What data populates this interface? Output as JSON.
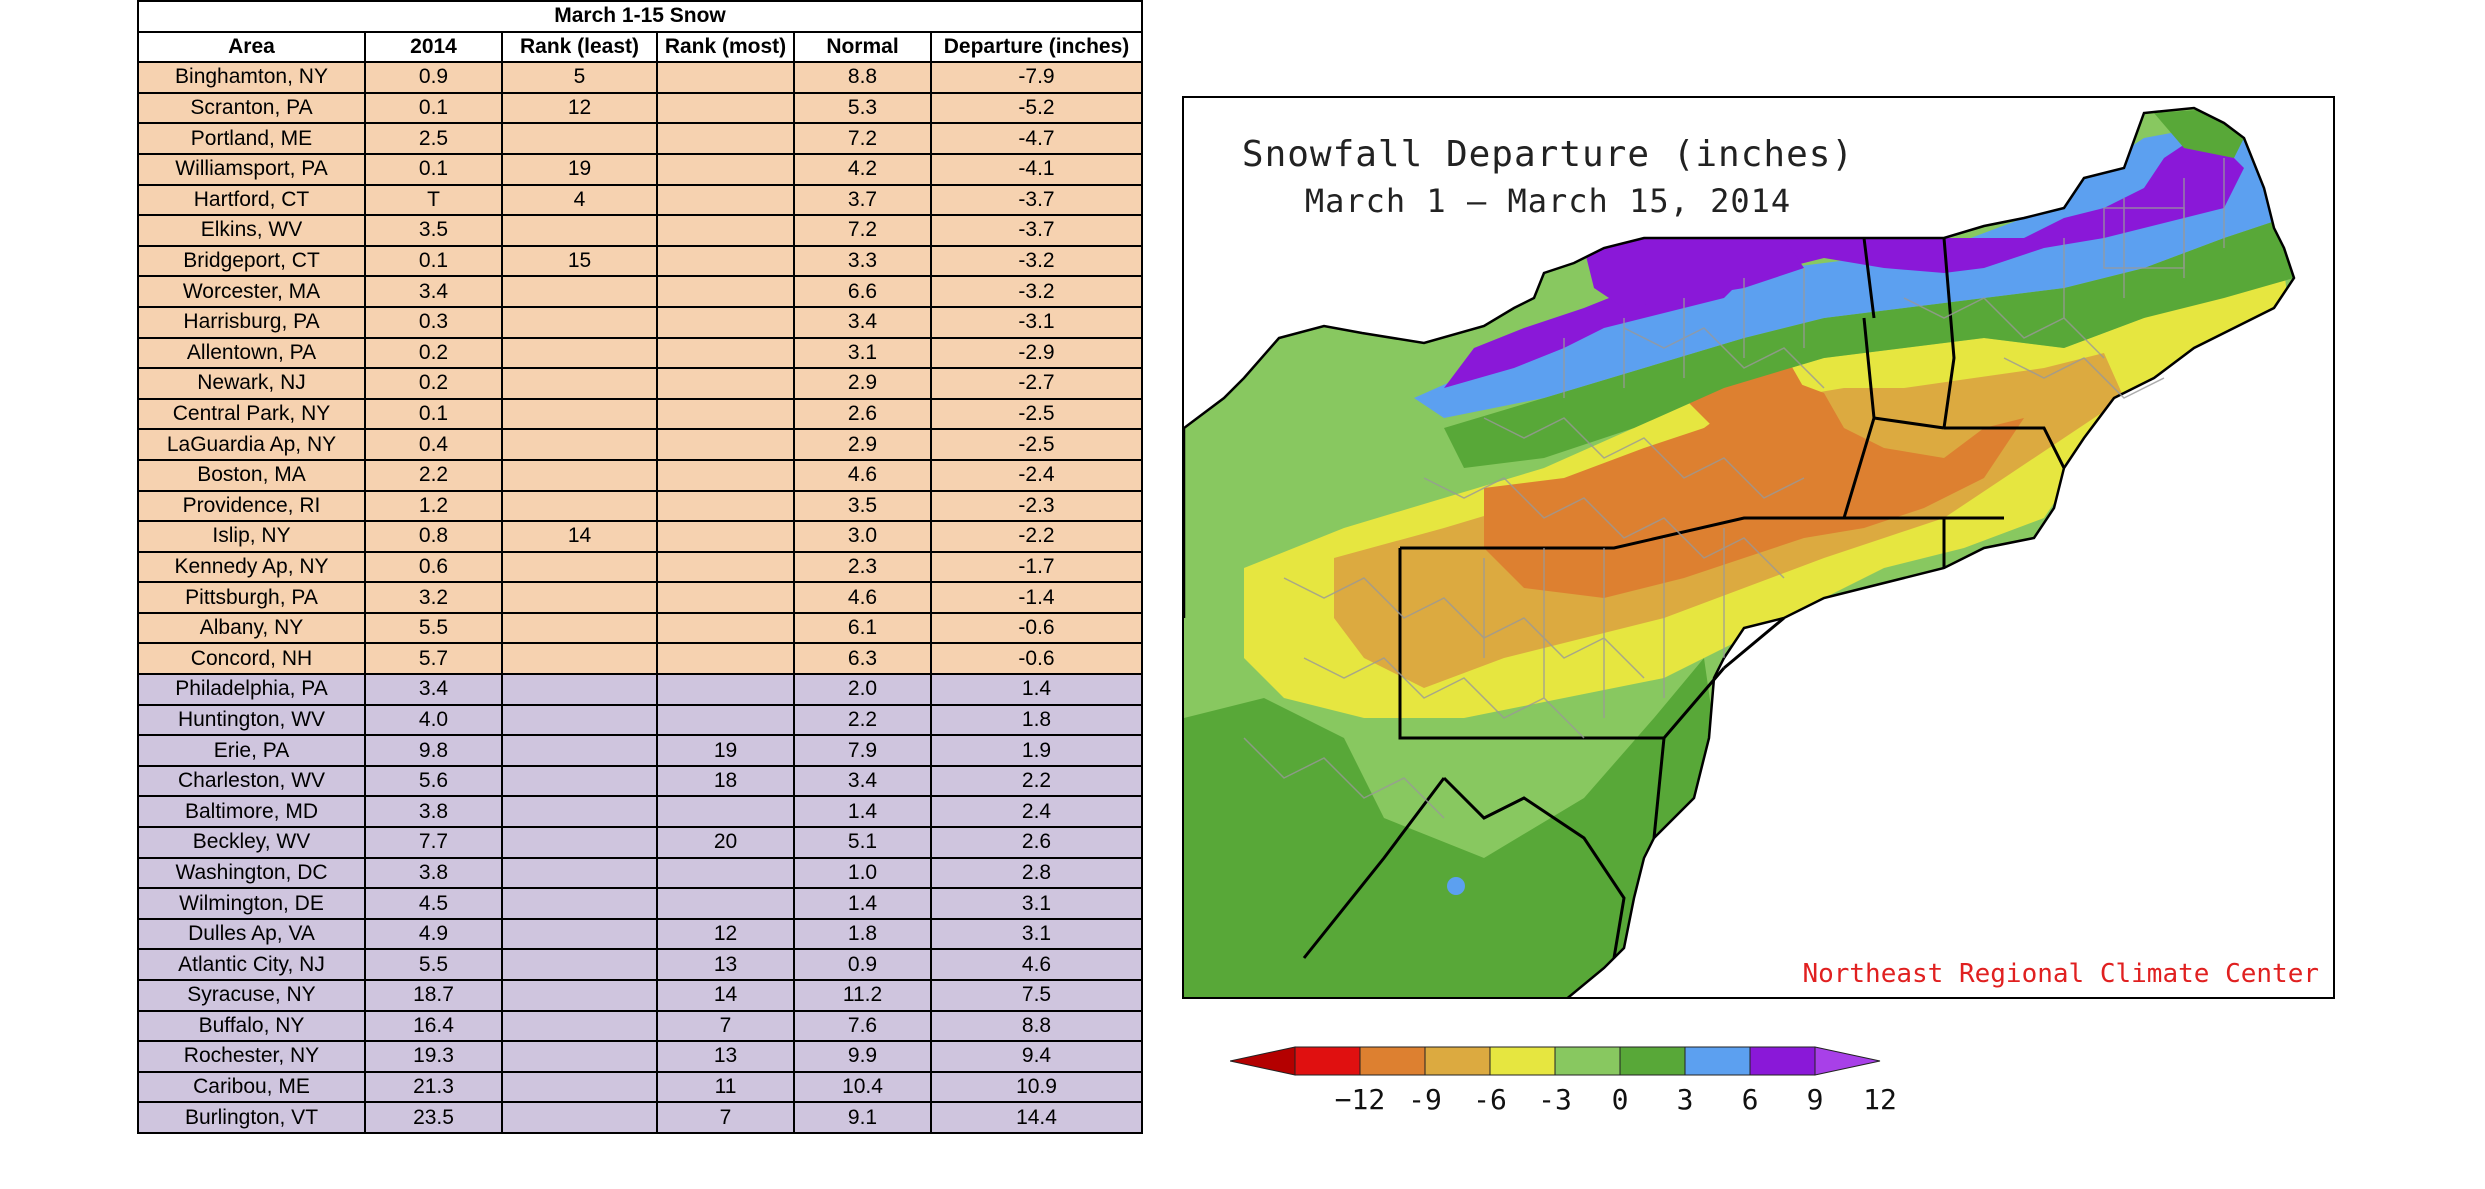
{
  "table": {
    "title": "March 1-15 Snow",
    "headers": [
      "Area",
      "2014",
      "Rank (least)",
      "Rank (most)",
      "Normal",
      "Departure (inches)"
    ],
    "rows": [
      {
        "area": "Binghamton, NY",
        "y2014": "0.9",
        "rank_least": "5",
        "rank_most": "",
        "normal": "8.8",
        "departure": "-7.9",
        "group": "deficit"
      },
      {
        "area": "Scranton, PA",
        "y2014": "0.1",
        "rank_least": "12",
        "rank_most": "",
        "normal": "5.3",
        "departure": "-5.2",
        "group": "deficit"
      },
      {
        "area": "Portland, ME",
        "y2014": "2.5",
        "rank_least": "",
        "rank_most": "",
        "normal": "7.2",
        "departure": "-4.7",
        "group": "deficit"
      },
      {
        "area": "Williamsport, PA",
        "y2014": "0.1",
        "rank_least": "19",
        "rank_most": "",
        "normal": "4.2",
        "departure": "-4.1",
        "group": "deficit"
      },
      {
        "area": "Hartford, CT",
        "y2014": "T",
        "rank_least": "4",
        "rank_most": "",
        "normal": "3.7",
        "departure": "-3.7",
        "group": "deficit"
      },
      {
        "area": "Elkins, WV",
        "y2014": "3.5",
        "rank_least": "",
        "rank_most": "",
        "normal": "7.2",
        "departure": "-3.7",
        "group": "deficit"
      },
      {
        "area": "Bridgeport, CT",
        "y2014": "0.1",
        "rank_least": "15",
        "rank_most": "",
        "normal": "3.3",
        "departure": "-3.2",
        "group": "deficit"
      },
      {
        "area": "Worcester, MA",
        "y2014": "3.4",
        "rank_least": "",
        "rank_most": "",
        "normal": "6.6",
        "departure": "-3.2",
        "group": "deficit"
      },
      {
        "area": "Harrisburg, PA",
        "y2014": "0.3",
        "rank_least": "",
        "rank_most": "",
        "normal": "3.4",
        "departure": "-3.1",
        "group": "deficit"
      },
      {
        "area": "Allentown, PA",
        "y2014": "0.2",
        "rank_least": "",
        "rank_most": "",
        "normal": "3.1",
        "departure": "-2.9",
        "group": "deficit"
      },
      {
        "area": "Newark, NJ",
        "y2014": "0.2",
        "rank_least": "",
        "rank_most": "",
        "normal": "2.9",
        "departure": "-2.7",
        "group": "deficit"
      },
      {
        "area": "Central Park, NY",
        "y2014": "0.1",
        "rank_least": "",
        "rank_most": "",
        "normal": "2.6",
        "departure": "-2.5",
        "group": "deficit"
      },
      {
        "area": "LaGuardia Ap, NY",
        "y2014": "0.4",
        "rank_least": "",
        "rank_most": "",
        "normal": "2.9",
        "departure": "-2.5",
        "group": "deficit"
      },
      {
        "area": "Boston, MA",
        "y2014": "2.2",
        "rank_least": "",
        "rank_most": "",
        "normal": "4.6",
        "departure": "-2.4",
        "group": "deficit"
      },
      {
        "area": "Providence, RI",
        "y2014": "1.2",
        "rank_least": "",
        "rank_most": "",
        "normal": "3.5",
        "departure": "-2.3",
        "group": "deficit"
      },
      {
        "area": "Islip, NY",
        "y2014": "0.8",
        "rank_least": "14",
        "rank_most": "",
        "normal": "3.0",
        "departure": "-2.2",
        "group": "deficit"
      },
      {
        "area": "Kennedy Ap, NY",
        "y2014": "0.6",
        "rank_least": "",
        "rank_most": "",
        "normal": "2.3",
        "departure": "-1.7",
        "group": "deficit"
      },
      {
        "area": "Pittsburgh, PA",
        "y2014": "3.2",
        "rank_least": "",
        "rank_most": "",
        "normal": "4.6",
        "departure": "-1.4",
        "group": "deficit"
      },
      {
        "area": "Albany, NY",
        "y2014": "5.5",
        "rank_least": "",
        "rank_most": "",
        "normal": "6.1",
        "departure": "-0.6",
        "group": "deficit"
      },
      {
        "area": "Concord, NH",
        "y2014": "5.7",
        "rank_least": "",
        "rank_most": "",
        "normal": "6.3",
        "departure": "-0.6",
        "group": "deficit"
      },
      {
        "area": "Philadelphia, PA",
        "y2014": "3.4",
        "rank_least": "",
        "rank_most": "",
        "normal": "2.0",
        "departure": "1.4",
        "group": "surplus"
      },
      {
        "area": "Huntington, WV",
        "y2014": "4.0",
        "rank_least": "",
        "rank_most": "",
        "normal": "2.2",
        "departure": "1.8",
        "group": "surplus"
      },
      {
        "area": "Erie, PA",
        "y2014": "9.8",
        "rank_least": "",
        "rank_most": "19",
        "normal": "7.9",
        "departure": "1.9",
        "group": "surplus"
      },
      {
        "area": "Charleston, WV",
        "y2014": "5.6",
        "rank_least": "",
        "rank_most": "18",
        "normal": "3.4",
        "departure": "2.2",
        "group": "surplus"
      },
      {
        "area": "Baltimore, MD",
        "y2014": "3.8",
        "rank_least": "",
        "rank_most": "",
        "normal": "1.4",
        "departure": "2.4",
        "group": "surplus"
      },
      {
        "area": "Beckley, WV",
        "y2014": "7.7",
        "rank_least": "",
        "rank_most": "20",
        "normal": "5.1",
        "departure": "2.6",
        "group": "surplus"
      },
      {
        "area": "Washington, DC",
        "y2014": "3.8",
        "rank_least": "",
        "rank_most": "",
        "normal": "1.0",
        "departure": "2.8",
        "group": "surplus"
      },
      {
        "area": "Wilmington, DE",
        "y2014": "4.5",
        "rank_least": "",
        "rank_most": "",
        "normal": "1.4",
        "departure": "3.1",
        "group": "surplus"
      },
      {
        "area": "Dulles Ap, VA",
        "y2014": "4.9",
        "rank_least": "",
        "rank_most": "12",
        "normal": "1.8",
        "departure": "3.1",
        "group": "surplus"
      },
      {
        "area": "Atlantic City, NJ",
        "y2014": "5.5",
        "rank_least": "",
        "rank_most": "13",
        "normal": "0.9",
        "departure": "4.6",
        "group": "surplus"
      },
      {
        "area": "Syracuse, NY",
        "y2014": "18.7",
        "rank_least": "",
        "rank_most": "14",
        "normal": "11.2",
        "departure": "7.5",
        "group": "surplus"
      },
      {
        "area": "Buffalo, NY",
        "y2014": "16.4",
        "rank_least": "",
        "rank_most": "7",
        "normal": "7.6",
        "departure": "8.8",
        "group": "surplus"
      },
      {
        "area": "Rochester, NY",
        "y2014": "19.3",
        "rank_least": "",
        "rank_most": "13",
        "normal": "9.9",
        "departure": "9.4",
        "group": "surplus"
      },
      {
        "area": "Caribou, ME",
        "y2014": "21.3",
        "rank_least": "",
        "rank_most": "11",
        "normal": "10.4",
        "departure": "10.9",
        "group": "surplus"
      },
      {
        "area": "Burlington, VT",
        "y2014": "23.5",
        "rank_least": "",
        "rank_most": "7",
        "normal": "9.1",
        "departure": "14.4",
        "group": "surplus"
      }
    ],
    "colors": {
      "deficit": "#f6d2b0",
      "surplus": "#cfc5de"
    }
  },
  "map": {
    "title_line1": "Snowfall Departure (inches)",
    "title_line2": "March 1 — March 15, 2014",
    "credit": "Northeast Regional Climate Center"
  },
  "legend": {
    "labels": [
      "−12",
      "-9",
      "-6",
      "-3",
      "0",
      "3",
      "6",
      "9",
      "12"
    ],
    "colors": [
      "#b40000",
      "#e01010",
      "#dd8030",
      "#dcaa40",
      "#e6e640",
      "#88c860",
      "#58a838",
      "#5ca0f0",
      "#8a18d8",
      "#a840e8"
    ]
  }
}
